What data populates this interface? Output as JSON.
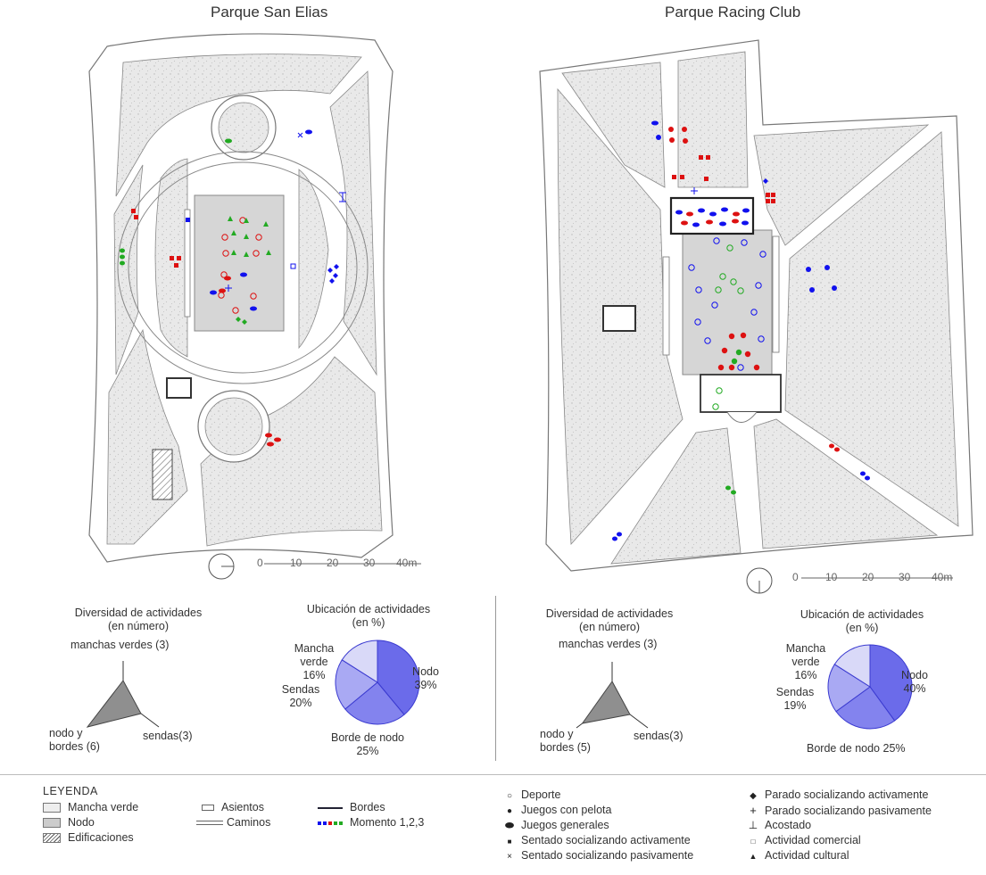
{
  "parks": [
    {
      "title": "Parque San Elias",
      "scale_labels": [
        "0",
        "10",
        "20",
        "30",
        "40m"
      ],
      "diversity": {
        "title_line1": "Diversidad de actividades",
        "title_line2": "(en número)",
        "axis_top": "manchas verdes (3)",
        "axis_left_line1": "nodo y",
        "axis_left_line2": "bordes (6)",
        "axis_right": "sendas(3)",
        "values": {
          "manchas_verdes": 3,
          "nodo_y_bordes": 6,
          "sendas": 3
        }
      },
      "location": {
        "title_line1": "Ubicación de actividades",
        "title_line2": "(en %)",
        "slices": [
          {
            "label": "Nodo",
            "value": 39,
            "value_text": "39%"
          },
          {
            "label": "Borde de nodo",
            "value": 25,
            "value_text": "25%"
          },
          {
            "label": "Sendas",
            "value": 20,
            "value_text": "20%"
          },
          {
            "label": "Mancha verde",
            "value": 16,
            "value_text": "16%"
          }
        ]
      }
    },
    {
      "title": "Parque Racing Club",
      "scale_labels": [
        "0",
        "10",
        "20",
        "30",
        "40m"
      ],
      "diversity": {
        "title_line1": "Diversidad de actividades",
        "title_line2": "(en número)",
        "axis_top": "manchas verdes (3)",
        "axis_left_line1": "nodo y",
        "axis_left_line2": "bordes (5)",
        "axis_right": "sendas(3)",
        "values": {
          "manchas_verdes": 3,
          "nodo_y_bordes": 5,
          "sendas": 3
        }
      },
      "location": {
        "title_line1": "Ubicación de actividades",
        "title_line2": "(en %)",
        "slices": [
          {
            "label": "Nodo",
            "value": 40,
            "value_text": "40%"
          },
          {
            "label": "Borde de nodo",
            "value": 25,
            "value_text": "Borde de nodo 25%"
          },
          {
            "label": "Sendas",
            "value": 19,
            "value_text": "19%"
          },
          {
            "label": "Mancha verde",
            "value": 16,
            "value_text": "16%"
          }
        ]
      }
    }
  ],
  "legend": {
    "title": "LEYENDA",
    "areas": [
      "Mancha verde",
      "Nodo",
      "Edificaciones"
    ],
    "elements": [
      "Asientos",
      "Caminos"
    ],
    "lines": [
      "Bordes",
      "Momento 1,2,3"
    ],
    "activities_col1": [
      {
        "icon": "open-circle-icon",
        "label": "Deporte"
      },
      {
        "icon": "filled-circle-icon",
        "label": "Juegos con pelota"
      },
      {
        "icon": "filled-ellipse-icon",
        "label": "Juegos generales"
      },
      {
        "icon": "filled-square-icon",
        "label": "Sentado socializando activamente"
      },
      {
        "icon": "cross-x-icon",
        "label": "Sentado socializando pasivamente"
      }
    ],
    "activities_col2": [
      {
        "icon": "filled-diamond-icon",
        "label": "Parado socializando activamente"
      },
      {
        "icon": "plus-icon",
        "label": "Parado socializando pasivamente"
      },
      {
        "icon": "inverted-t-icon",
        "label": "Acostado"
      },
      {
        "icon": "open-square-icon",
        "label": "Actividad comercial"
      },
      {
        "icon": "filled-triangle-icon",
        "label": "Actividad cultural"
      }
    ]
  },
  "colors": {
    "moment1": "#1a1aee",
    "moment2": "#dd1111",
    "moment3": "#22aa22",
    "pie_nodo": "#6b6bea",
    "pie_borde": "#8383ee",
    "pie_sendas": "#a9a9f3",
    "pie_mancha": "#d9d9f8",
    "radar_fill": "#8f8f8f",
    "path_fill": "#ffffff",
    "green_fill": "#eeeeee",
    "node_fill": "#d6d6d6"
  }
}
